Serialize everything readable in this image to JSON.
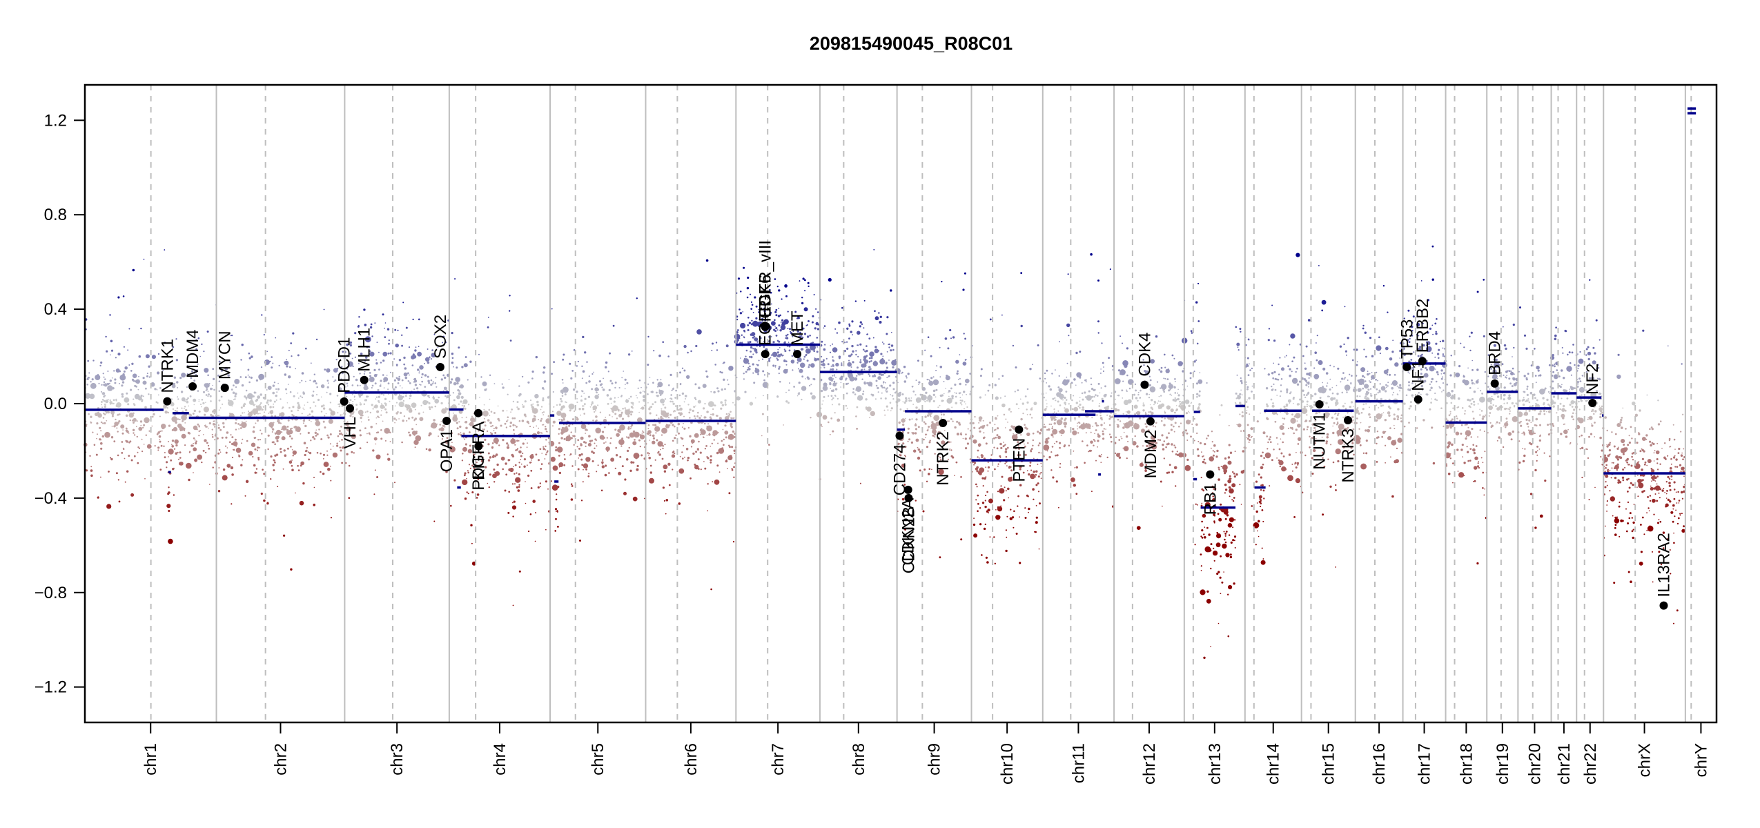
{
  "chart_data": {
    "type": "scatter",
    "title": "209815490045_R08C01",
    "xlabel": "",
    "ylabel": "",
    "ylim": [
      -1.35,
      1.35
    ],
    "yticks": [
      -1.2,
      -0.8,
      -0.4,
      0.0,
      0.4,
      0.8,
      1.2
    ],
    "ytick_labels": [
      "−1.2",
      "−0.8",
      "−0.4",
      "0.0",
      "0.4",
      "0.8",
      "1.2"
    ],
    "grid": false,
    "legend": "none",
    "colors": {
      "gain": "#00008b",
      "neutral": "#cccccc",
      "loss": "#8b0000",
      "segment": "#00008b",
      "gene": "#000000",
      "chrom_border": "#bebebe",
      "centromere": "#bebebe"
    },
    "chromosomes": [
      {
        "name": "chr1",
        "length_mb": 249,
        "centromere_mb": 125,
        "points_spread": 0.12
      },
      {
        "name": "chr2",
        "length_mb": 243,
        "centromere_mb": 93,
        "points_spread": 0.12
      },
      {
        "name": "chr3",
        "length_mb": 198,
        "centromere_mb": 91,
        "points_spread": 0.12
      },
      {
        "name": "chr4",
        "length_mb": 191,
        "centromere_mb": 50,
        "points_spread": 0.13
      },
      {
        "name": "chr5",
        "length_mb": 181,
        "centromere_mb": 48,
        "points_spread": 0.12
      },
      {
        "name": "chr6",
        "length_mb": 171,
        "centromere_mb": 60,
        "points_spread": 0.12
      },
      {
        "name": "chr7",
        "length_mb": 159,
        "centromere_mb": 60,
        "points_spread": 0.1
      },
      {
        "name": "chr8",
        "length_mb": 146,
        "centromere_mb": 45,
        "points_spread": 0.1
      },
      {
        "name": "chr9",
        "length_mb": 141,
        "centromere_mb": 48,
        "points_spread": 0.12
      },
      {
        "name": "chr10",
        "length_mb": 135,
        "centromere_mb": 40,
        "points_spread": 0.16
      },
      {
        "name": "chr11",
        "length_mb": 135,
        "centromere_mb": 53,
        "points_spread": 0.12
      },
      {
        "name": "chr12",
        "length_mb": 133,
        "centromere_mb": 35,
        "points_spread": 0.12
      },
      {
        "name": "chr13",
        "length_mb": 115,
        "centromere_mb": 17,
        "points_spread": 0.18
      },
      {
        "name": "chr14",
        "length_mb": 107,
        "centromere_mb": 17,
        "points_spread": 0.14
      },
      {
        "name": "chr15",
        "length_mb": 102,
        "centromere_mb": 18,
        "points_spread": 0.12
      },
      {
        "name": "chr16",
        "length_mb": 90,
        "centromere_mb": 37,
        "points_spread": 0.12
      },
      {
        "name": "chr17",
        "length_mb": 81,
        "centromere_mb": 24,
        "points_spread": 0.1
      },
      {
        "name": "chr18",
        "length_mb": 78,
        "centromere_mb": 17,
        "points_spread": 0.12
      },
      {
        "name": "chr19",
        "length_mb": 59,
        "centromere_mb": 27,
        "points_spread": 0.1
      },
      {
        "name": "chr20",
        "length_mb": 63,
        "centromere_mb": 28,
        "points_spread": 0.12
      },
      {
        "name": "chr21",
        "length_mb": 48,
        "centromere_mb": 13,
        "points_spread": 0.1
      },
      {
        "name": "chr22",
        "length_mb": 51,
        "centromere_mb": 15,
        "points_spread": 0.12
      },
      {
        "name": "chrX",
        "length_mb": 155,
        "centromere_mb": 60,
        "points_spread": 0.14
      },
      {
        "name": "chrY",
        "length_mb": 59,
        "centromere_mb": 11,
        "points_spread": 0.0
      }
    ],
    "segments": [
      {
        "chr": "chr1",
        "start_mb": 0,
        "end_mb": 149,
        "mean": -0.026
      },
      {
        "chr": "chr1",
        "start_mb": 158,
        "end_mb": 163,
        "mean": -0.29
      },
      {
        "chr": "chr1",
        "start_mb": 166,
        "end_mb": 197,
        "mean": -0.04
      },
      {
        "chr": "chr1",
        "start_mb": 197,
        "end_mb": 249,
        "mean": -0.06
      },
      {
        "chr": "chr2",
        "start_mb": 0,
        "end_mb": 243,
        "mean": -0.06
      },
      {
        "chr": "chr3",
        "start_mb": 0,
        "end_mb": 198,
        "mean": 0.047
      },
      {
        "chr": "chr4",
        "start_mb": 0,
        "end_mb": 27,
        "mean": -0.025
      },
      {
        "chr": "chr4",
        "start_mb": 15,
        "end_mb": 22,
        "mean": -0.355
      },
      {
        "chr": "chr4",
        "start_mb": 23,
        "end_mb": 191,
        "mean": -0.137
      },
      {
        "chr": "chr5",
        "start_mb": 0,
        "end_mb": 8,
        "mean": -0.05
      },
      {
        "chr": "chr5",
        "start_mb": 8,
        "end_mb": 16,
        "mean": -0.33
      },
      {
        "chr": "chr5",
        "start_mb": 17,
        "end_mb": 181,
        "mean": -0.082
      },
      {
        "chr": "chr6",
        "start_mb": 0,
        "end_mb": 171,
        "mean": -0.073
      },
      {
        "chr": "chr7",
        "start_mb": 0,
        "end_mb": 159,
        "mean": 0.25
      },
      {
        "chr": "chr8",
        "start_mb": 0,
        "end_mb": 146,
        "mean": 0.134
      },
      {
        "chr": "chr9",
        "start_mb": 0,
        "end_mb": 15,
        "mean": -0.11
      },
      {
        "chr": "chr9",
        "start_mb": 15,
        "end_mb": 141,
        "mean": -0.032
      },
      {
        "chr": "chr10",
        "start_mb": 0,
        "end_mb": 135,
        "mean": -0.24
      },
      {
        "chr": "chr11",
        "start_mb": 0,
        "end_mb": 100,
        "mean": -0.047
      },
      {
        "chr": "chr11",
        "start_mb": 105,
        "end_mb": 110,
        "mean": -0.3
      },
      {
        "chr": "chr11",
        "start_mb": 112,
        "end_mb": 116,
        "mean": 0.01
      },
      {
        "chr": "chr11",
        "start_mb": 80,
        "end_mb": 135,
        "mean": -0.032
      },
      {
        "chr": "chr12",
        "start_mb": 0,
        "end_mb": 133,
        "mean": -0.053
      },
      {
        "chr": "chr13",
        "start_mb": 18,
        "end_mb": 30,
        "mean": -0.035
      },
      {
        "chr": "chr13",
        "start_mb": 17,
        "end_mb": 24,
        "mean": -0.32
      },
      {
        "chr": "chr13",
        "start_mb": 31,
        "end_mb": 97,
        "mean": -0.44
      },
      {
        "chr": "chr13",
        "start_mb": 97,
        "end_mb": 115,
        "mean": -0.01
      },
      {
        "chr": "chr14",
        "start_mb": 18,
        "end_mb": 39,
        "mean": -0.355
      },
      {
        "chr": "chr14",
        "start_mb": 36,
        "end_mb": 107,
        "mean": -0.03
      },
      {
        "chr": "chr15",
        "start_mb": 20,
        "end_mb": 99,
        "mean": -0.03
      },
      {
        "chr": "chr16",
        "start_mb": 0,
        "end_mb": 90,
        "mean": 0.01
      },
      {
        "chr": "chr17",
        "start_mb": 0,
        "end_mb": 81,
        "mean": 0.17
      },
      {
        "chr": "chr18",
        "start_mb": 0,
        "end_mb": 78,
        "mean": -0.08
      },
      {
        "chr": "chr19",
        "start_mb": 0,
        "end_mb": 59,
        "mean": 0.05
      },
      {
        "chr": "chr20",
        "start_mb": 0,
        "end_mb": 63,
        "mean": -0.02
      },
      {
        "chr": "chr21",
        "start_mb": 0,
        "end_mb": 48,
        "mean": 0.044
      },
      {
        "chr": "chr22",
        "start_mb": 0,
        "end_mb": 47,
        "mean": 0.026
      },
      {
        "chr": "chr22",
        "start_mb": 48,
        "end_mb": 51,
        "mean": -0.05
      },
      {
        "chr": "chrX",
        "start_mb": 0,
        "end_mb": 155,
        "mean": -0.295
      },
      {
        "chr": "chrY",
        "start_mb": 4,
        "end_mb": 20,
        "mean": 1.25
      },
      {
        "chr": "chrY",
        "start_mb": 4,
        "end_mb": 20,
        "mean": 1.23
      }
    ],
    "genes": [
      {
        "name": "NTRK1",
        "chr": "chr1",
        "pos_mb": 156,
        "value": 0.01,
        "label_side": "above"
      },
      {
        "name": "MDM4",
        "chr": "chr1",
        "pos_mb": 204,
        "value": 0.073,
        "label_side": "above"
      },
      {
        "name": "MYCN",
        "chr": "chr2",
        "pos_mb": 16,
        "value": 0.067,
        "label_side": "above"
      },
      {
        "name": "PDCD1",
        "chr": "chr2",
        "pos_mb": 242,
        "value": 0.009,
        "label_side": "above"
      },
      {
        "name": "VHL",
        "chr": "chr3",
        "pos_mb": 10,
        "value": -0.02,
        "label_side": "below"
      },
      {
        "name": "MLH1",
        "chr": "chr3",
        "pos_mb": 37,
        "value": 0.1,
        "label_side": "above"
      },
      {
        "name": "SOX2",
        "chr": "chr3",
        "pos_mb": 181,
        "value": 0.155,
        "label_side": "above"
      },
      {
        "name": "OPA1",
        "chr": "chr3",
        "pos_mb": 193,
        "value": -0.073,
        "label_side": "below"
      },
      {
        "name": "PDGFRA",
        "chr": "chr4",
        "pos_mb": 55,
        "value": -0.04,
        "label_side": "below"
      },
      {
        "name": "KIT",
        "chr": "chr4",
        "pos_mb": 55.5,
        "value": -0.18,
        "label_side": "below"
      },
      {
        "name": "EGFR_vIII",
        "chr": "chr7",
        "pos_mb": 55,
        "value": 0.33,
        "label_side": "above"
      },
      {
        "name": "CDK6",
        "chr": "chr7",
        "pos_mb": 55.2,
        "value": 0.325,
        "label_side": "above"
      },
      {
        "name": "EGFR",
        "chr": "chr7",
        "pos_mb": 55.4,
        "value": 0.21,
        "label_side": "above"
      },
      {
        "name": "MET",
        "chr": "chr7",
        "pos_mb": 116,
        "value": 0.21,
        "label_side": "above"
      },
      {
        "name": "CD274",
        "chr": "chr9",
        "pos_mb": 5,
        "value": -0.136,
        "label_side": "below"
      },
      {
        "name": "CDKN2A",
        "chr": "chr9",
        "pos_mb": 21,
        "value": -0.365,
        "label_side": "below"
      },
      {
        "name": "CDKN2B",
        "chr": "chr9",
        "pos_mb": 22,
        "value": -0.4,
        "label_side": "below"
      },
      {
        "name": "NTRK2",
        "chr": "chr9",
        "pos_mb": 87,
        "value": -0.082,
        "label_side": "below"
      },
      {
        "name": "PTEN",
        "chr": "chr10",
        "pos_mb": 90,
        "value": -0.11,
        "label_side": "below"
      },
      {
        "name": "CDK4",
        "chr": "chr12",
        "pos_mb": 58,
        "value": 0.08,
        "label_side": "above"
      },
      {
        "name": "MDM2",
        "chr": "chr12",
        "pos_mb": 69,
        "value": -0.075,
        "label_side": "below"
      },
      {
        "name": "RB1",
        "chr": "chr13",
        "pos_mb": 49,
        "value": -0.3,
        "label_side": "below"
      },
      {
        "name": "NUTM1",
        "chr": "chr15",
        "pos_mb": 34,
        "value": -0.003,
        "label_side": "below"
      },
      {
        "name": "NTRK3",
        "chr": "chr15",
        "pos_mb": 88,
        "value": -0.07,
        "label_side": "below"
      },
      {
        "name": "TP53",
        "chr": "chr17",
        "pos_mb": 7.5,
        "value": 0.155,
        "label_side": "above"
      },
      {
        "name": "NF1",
        "chr": "chr17",
        "pos_mb": 29,
        "value": 0.018,
        "label_side": "above"
      },
      {
        "name": "ERBB2",
        "chr": "chr17",
        "pos_mb": 37,
        "value": 0.18,
        "label_side": "above"
      },
      {
        "name": "BRD4",
        "chr": "chr19",
        "pos_mb": 15,
        "value": 0.085,
        "label_side": "above"
      },
      {
        "name": "NF2",
        "chr": "chr22",
        "pos_mb": 30,
        "value": 0.003,
        "label_side": "above"
      },
      {
        "name": "IL13RA2",
        "chr": "chrX",
        "pos_mb": 114,
        "value": -0.855,
        "label_side": "above"
      }
    ]
  }
}
